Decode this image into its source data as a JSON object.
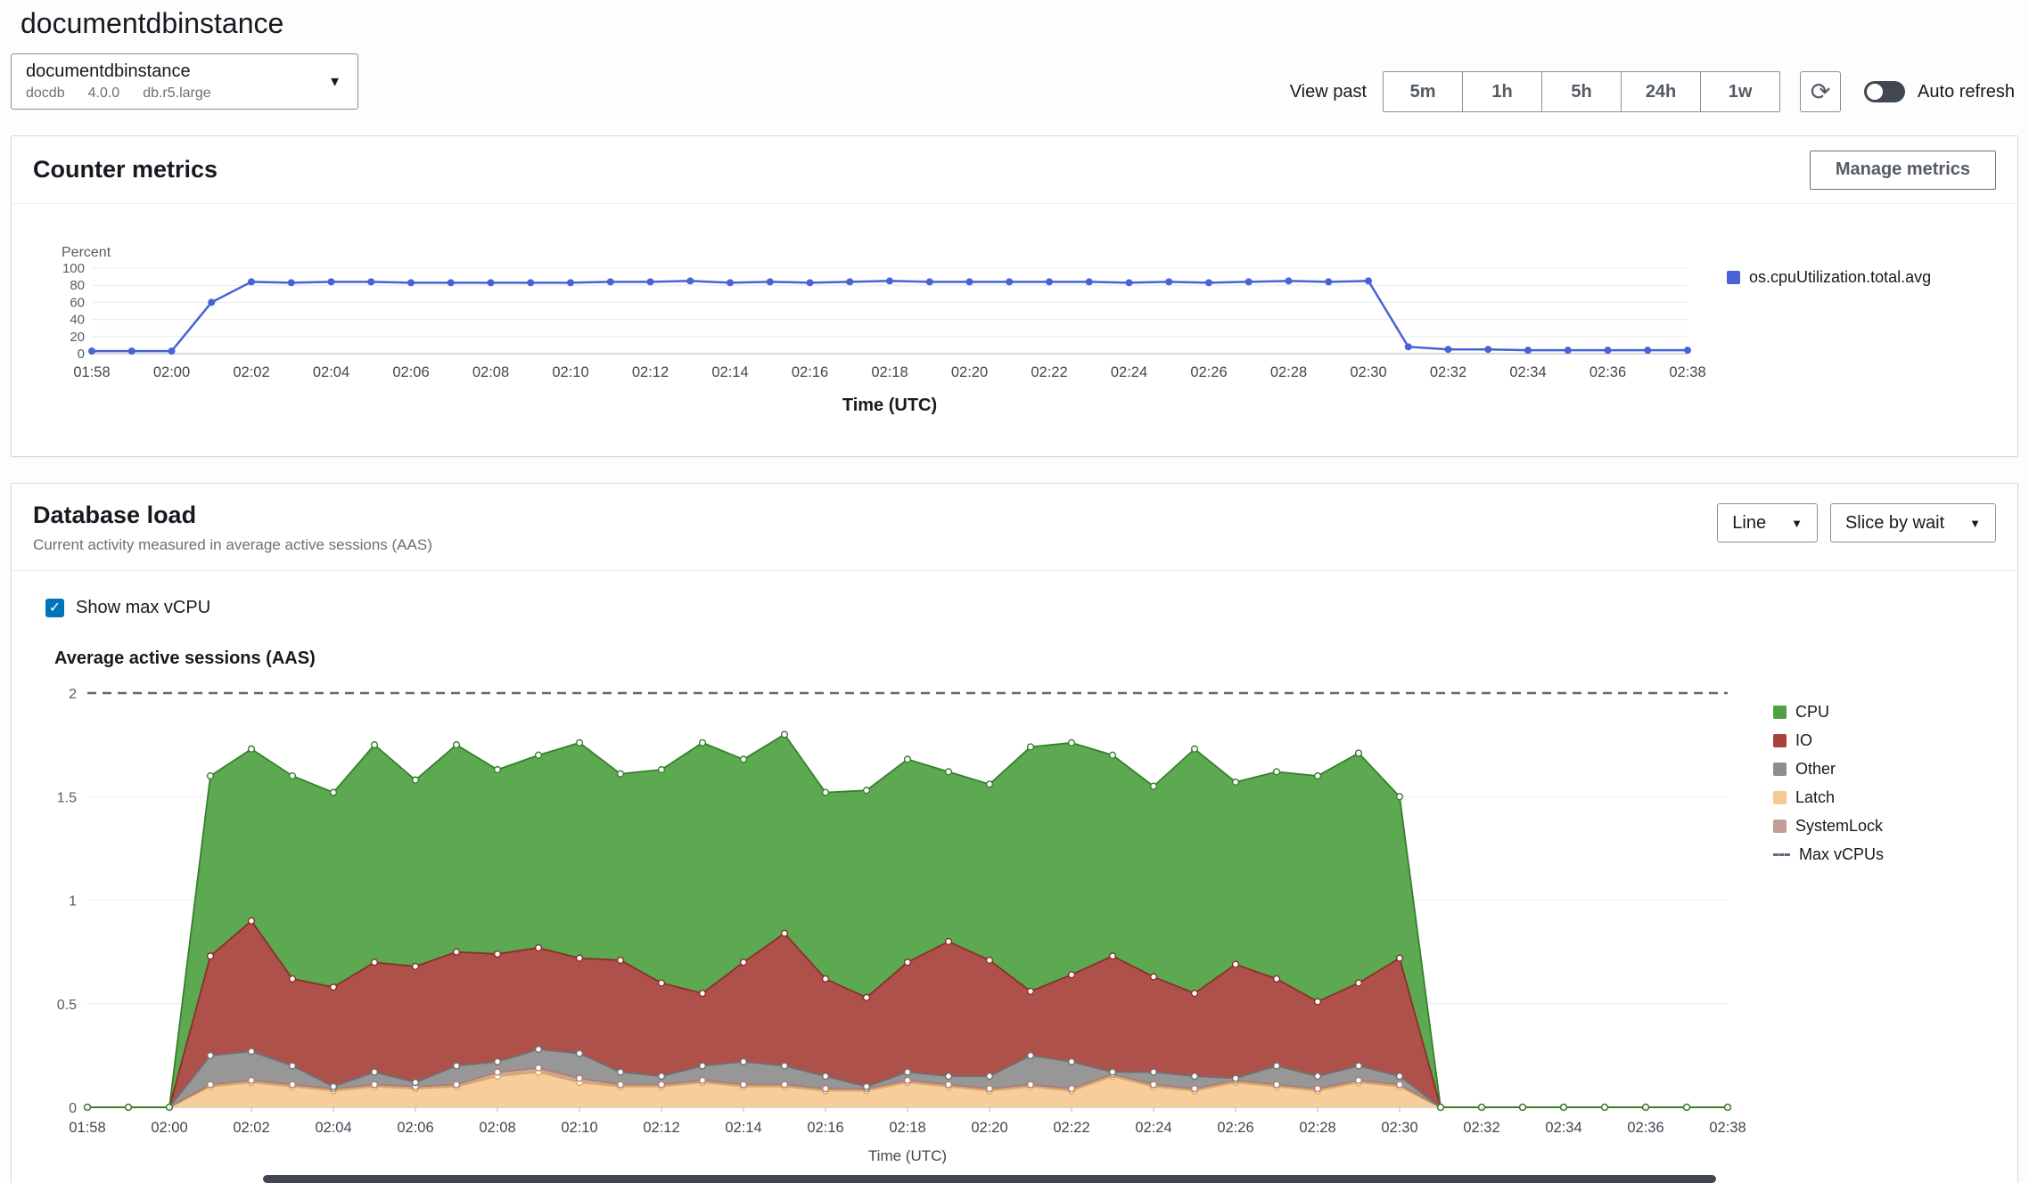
{
  "page": {
    "title": "documentdbinstance"
  },
  "instance_selector": {
    "name": "documentdbinstance",
    "engine": "docdb",
    "version": "4.0.0",
    "instance_class": "db.r5.large"
  },
  "header": {
    "view_past_label": "View past",
    "range_buttons": [
      "5m",
      "1h",
      "5h",
      "24h",
      "1w"
    ],
    "auto_refresh_label": "Auto refresh"
  },
  "counter_metrics": {
    "title": "Counter metrics",
    "manage_button": "Manage metrics"
  },
  "database_load": {
    "title": "Database load",
    "subtitle": "Current activity measured in average active sessions (AAS)",
    "line_dropdown": "Line",
    "slice_dropdown": "Slice by wait",
    "show_max_vcpu_label": "Show max vCPU",
    "max_vcpus_label": "Max vCPUs"
  },
  "chart_data": [
    {
      "type": "line",
      "title": "Counter metrics",
      "ylabel": "Percent",
      "xlabel": "Time (UTC)",
      "ylim": [
        0,
        100
      ],
      "yticks": [
        0,
        20,
        40,
        60,
        80,
        100
      ],
      "x": [
        "01:58",
        "01:59",
        "02:00",
        "02:01",
        "02:02",
        "02:03",
        "02:04",
        "02:05",
        "02:06",
        "02:07",
        "02:08",
        "02:09",
        "02:10",
        "02:11",
        "02:12",
        "02:13",
        "02:14",
        "02:15",
        "02:16",
        "02:17",
        "02:18",
        "02:19",
        "02:20",
        "02:21",
        "02:22",
        "02:23",
        "02:24",
        "02:25",
        "02:26",
        "02:27",
        "02:28",
        "02:29",
        "02:30",
        "02:31",
        "02:32",
        "02:33",
        "02:34",
        "02:35",
        "02:36",
        "02:37",
        "02:38"
      ],
      "x_label_every": 2,
      "grid": true,
      "legend_position": "right",
      "series": [
        {
          "name": "os.cpuUtilization.total.avg",
          "color": "#4763d4",
          "values": [
            3,
            3,
            3,
            60,
            84,
            83,
            84,
            84,
            83,
            83,
            83,
            83,
            83,
            84,
            84,
            85,
            83,
            84,
            83,
            84,
            85,
            84,
            84,
            84,
            84,
            84,
            83,
            84,
            83,
            84,
            85,
            84,
            85,
            8,
            5,
            5,
            4,
            4,
            4,
            4,
            4
          ]
        }
      ]
    },
    {
      "type": "area",
      "stacked": true,
      "title": "Average active sessions (AAS)",
      "xlabel": "Time (UTC)",
      "ylim": [
        0,
        2
      ],
      "yticks": [
        0,
        0.5,
        1,
        1.5,
        2
      ],
      "max_vcpus": 2,
      "max_vcpus_line_color": "#5f6b7a",
      "grid": true,
      "legend_position": "right",
      "x": [
        "01:58",
        "01:59",
        "02:00",
        "02:01",
        "02:02",
        "02:03",
        "02:04",
        "02:05",
        "02:06",
        "02:07",
        "02:08",
        "02:09",
        "02:10",
        "02:11",
        "02:12",
        "02:13",
        "02:14",
        "02:15",
        "02:16",
        "02:17",
        "02:18",
        "02:19",
        "02:20",
        "02:21",
        "02:22",
        "02:23",
        "02:24",
        "02:25",
        "02:26",
        "02:27",
        "02:28",
        "02:29",
        "02:30",
        "02:31",
        "02:32",
        "02:33",
        "02:34",
        "02:35",
        "02:36",
        "02:37",
        "02:38"
      ],
      "x_label_every": 2,
      "stack_order": [
        "Latch",
        "SystemLock",
        "Other",
        "IO",
        "CPU"
      ],
      "series": [
        {
          "name": "CPU",
          "color": "#4ea242",
          "stroke": "#35812b",
          "values": [
            0,
            0,
            0,
            0.87,
            0.83,
            0.98,
            0.94,
            1.05,
            0.9,
            1.0,
            0.89,
            0.93,
            1.04,
            0.9,
            1.03,
            1.21,
            0.98,
            0.96,
            0.9,
            1.0,
            0.98,
            0.82,
            0.85,
            1.18,
            1.12,
            0.97,
            0.92,
            1.18,
            0.88,
            1.0,
            1.09,
            1.11,
            0.78,
            0,
            0,
            0,
            0,
            0,
            0,
            0,
            0
          ]
        },
        {
          "name": "IO",
          "color": "#a8423c",
          "stroke": "#8b2f29",
          "values": [
            0,
            0,
            0,
            0.48,
            0.63,
            0.42,
            0.48,
            0.53,
            0.56,
            0.55,
            0.52,
            0.49,
            0.46,
            0.54,
            0.45,
            0.35,
            0.48,
            0.64,
            0.47,
            0.43,
            0.53,
            0.65,
            0.56,
            0.31,
            0.42,
            0.56,
            0.46,
            0.4,
            0.55,
            0.42,
            0.36,
            0.4,
            0.57,
            0,
            0,
            0,
            0,
            0,
            0,
            0,
            0
          ]
        },
        {
          "name": "Other",
          "color": "#8e8e8e",
          "stroke": "#707070",
          "values": [
            0,
            0,
            0,
            0.14,
            0.14,
            0.09,
            0.01,
            0.06,
            0.02,
            0.09,
            0.05,
            0.09,
            0.12,
            0.06,
            0.04,
            0.07,
            0.11,
            0.09,
            0.06,
            0.01,
            0.04,
            0.04,
            0.06,
            0.14,
            0.13,
            0.01,
            0.06,
            0.06,
            0.01,
            0.09,
            0.06,
            0.07,
            0.04,
            0,
            0,
            0,
            0,
            0,
            0,
            0,
            0
          ]
        },
        {
          "name": "Latch",
          "color": "#f5c992",
          "stroke": "#dda55f",
          "values": [
            0,
            0,
            0,
            0.1,
            0.12,
            0.1,
            0.08,
            0.1,
            0.09,
            0.1,
            0.15,
            0.17,
            0.12,
            0.1,
            0.1,
            0.12,
            0.1,
            0.1,
            0.08,
            0.08,
            0.12,
            0.1,
            0.08,
            0.1,
            0.08,
            0.15,
            0.1,
            0.08,
            0.12,
            0.1,
            0.08,
            0.12,
            0.1,
            0,
            0,
            0,
            0,
            0,
            0,
            0,
            0
          ]
        },
        {
          "name": "SystemLock",
          "color": "#c79e97",
          "stroke": "#a87f77",
          "values": [
            0,
            0,
            0,
            0.01,
            0.01,
            0.01,
            0.01,
            0.01,
            0.01,
            0.01,
            0.02,
            0.02,
            0.02,
            0.01,
            0.01,
            0.01,
            0.01,
            0.01,
            0.01,
            0.01,
            0.01,
            0.01,
            0.01,
            0.01,
            0.01,
            0.01,
            0.01,
            0.01,
            0.01,
            0.01,
            0.01,
            0.01,
            0.01,
            0,
            0,
            0,
            0,
            0,
            0,
            0,
            0
          ]
        }
      ]
    }
  ]
}
